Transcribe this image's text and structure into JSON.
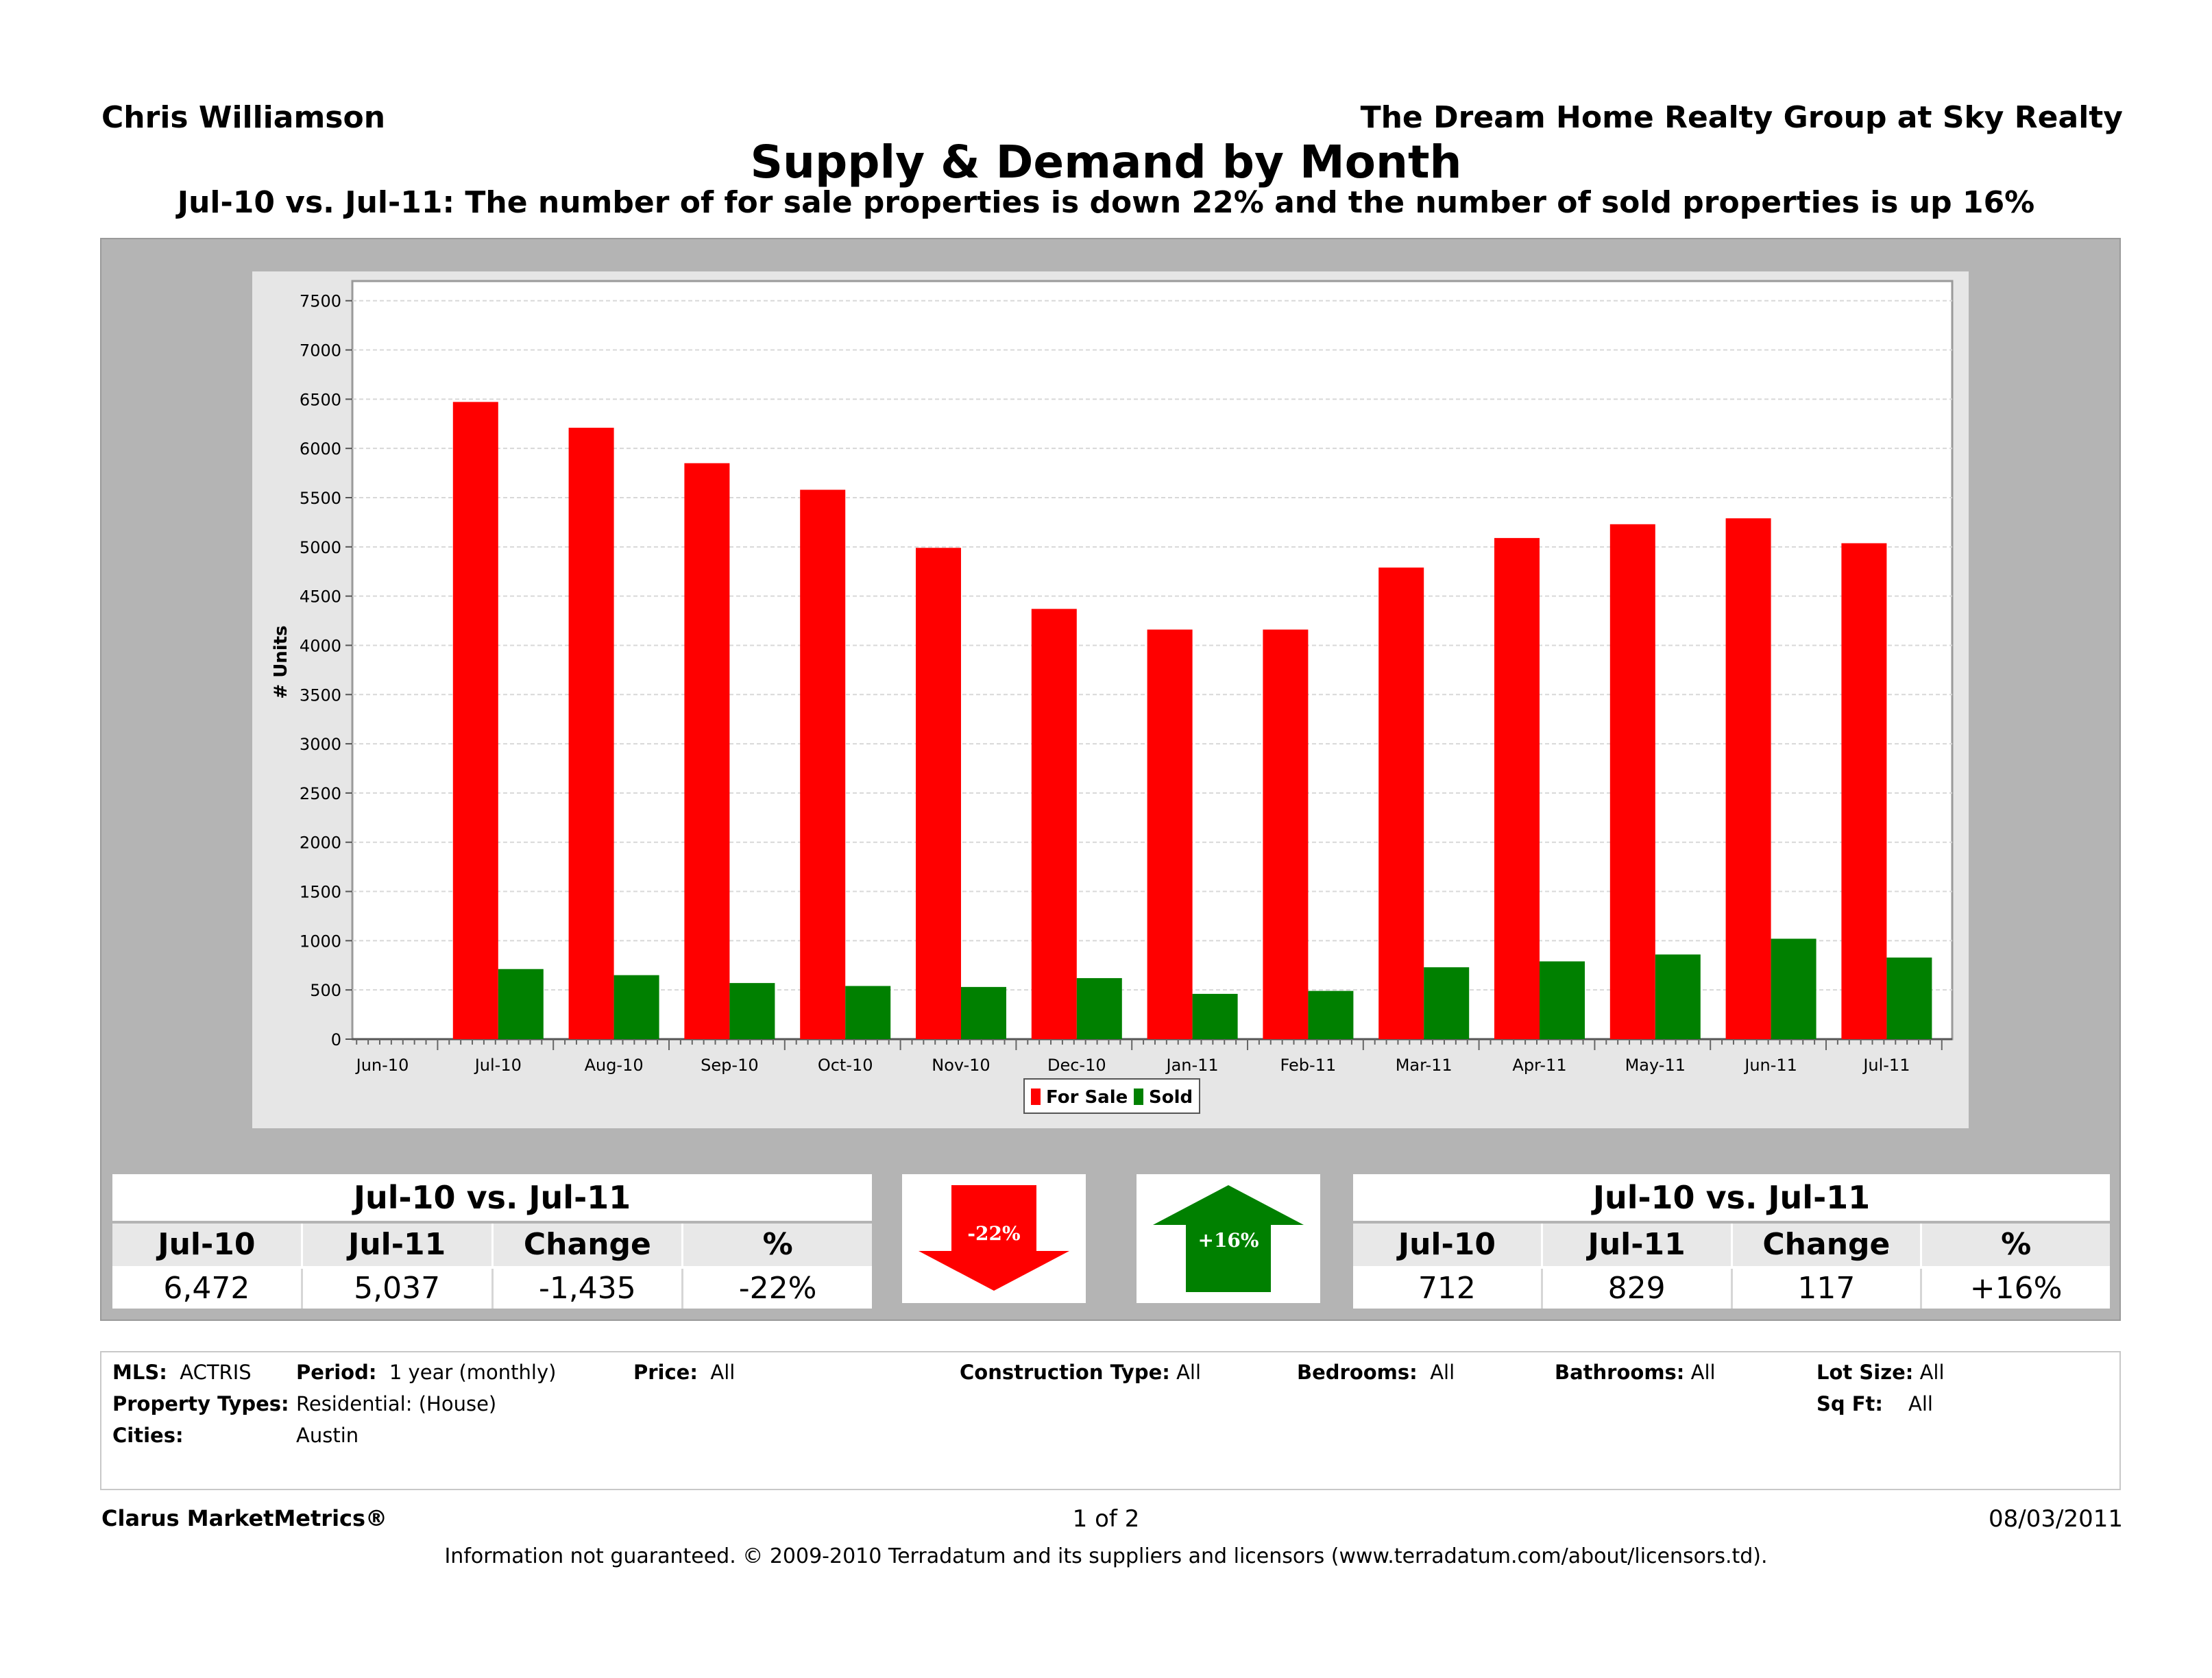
{
  "header": {
    "agent_name": "Chris Williamson",
    "company": "The Dream Home Realty Group at Sky Realty",
    "title": "Supply & Demand by Month",
    "subtitle": "Jul-10 vs. Jul-11:  The number of for sale properties is down 22% and the number of sold properties is up 16%"
  },
  "chart_data": {
    "type": "bar",
    "ylabel": "# Units",
    "xlabel": "",
    "ylim": [
      0,
      7700
    ],
    "yticks": [
      "0",
      "500",
      "1000",
      "1500",
      "2000",
      "2500",
      "3000",
      "3500",
      "4000",
      "4500",
      "5000",
      "5500",
      "6000",
      "6500",
      "7000",
      "7500"
    ],
    "categories": [
      "Jun-10",
      "Jul-10",
      "Aug-10",
      "Sep-10",
      "Oct-10",
      "Nov-10",
      "Dec-10",
      "Jan-11",
      "Feb-11",
      "Mar-11",
      "Apr-11",
      "May-11",
      "Jun-11",
      "Jul-11"
    ],
    "series": [
      {
        "name": "For Sale",
        "color": "#ff0000",
        "values": [
          null,
          6472,
          6210,
          5850,
          5580,
          4990,
          4370,
          4160,
          4160,
          4790,
          5090,
          5230,
          5290,
          5037
        ]
      },
      {
        "name": "Sold",
        "color": "#008000",
        "values": [
          null,
          712,
          650,
          570,
          540,
          530,
          620,
          460,
          490,
          730,
          790,
          860,
          1020,
          829
        ]
      }
    ],
    "grid": true,
    "legend_placement": "bottom-center"
  },
  "stats_left": {
    "title": "Jul-10 vs. Jul-11",
    "headers": [
      "Jul-10",
      "Jul-11",
      "Change",
      "%"
    ],
    "values": [
      "6,472",
      "5,037",
      "-1,435",
      "-22%"
    ]
  },
  "stats_right": {
    "title": "Jul-10 vs. Jul-11",
    "headers": [
      "Jul-10",
      "Jul-11",
      "Change",
      "%"
    ],
    "values": [
      "712",
      "829",
      "117",
      "+16%"
    ]
  },
  "arrows": {
    "down_label": "-22%",
    "down_color": "#ff0000",
    "up_label": "+16%",
    "up_color": "#008000"
  },
  "filters": {
    "mls_label": "MLS:",
    "mls_value": "ACTRIS",
    "period_label": "Period:",
    "period_value": "1 year (monthly)",
    "price_label": "Price:",
    "price_value": "All",
    "construction_label": "Construction Type:",
    "construction_value": "All",
    "bedrooms_label": "Bedrooms:",
    "bedrooms_value": "All",
    "bathrooms_label": "Bathrooms:",
    "bathrooms_value": "All",
    "lotsize_label": "Lot Size:",
    "lotsize_value": "All",
    "proptypes_label": "Property Types:",
    "proptypes_value": "Residential: (House)",
    "sqft_label": "Sq Ft:",
    "sqft_value": "All",
    "cities_label": "Cities:",
    "cities_value": "Austin"
  },
  "footer": {
    "brand": "Clarus MarketMetrics®",
    "page": "1 of 2",
    "date": "08/03/2011",
    "disclaimer": "Information not guaranteed.  © 2009-2010 Terradatum and its suppliers and licensors (www.terradatum.com/about/licensors.td)."
  }
}
